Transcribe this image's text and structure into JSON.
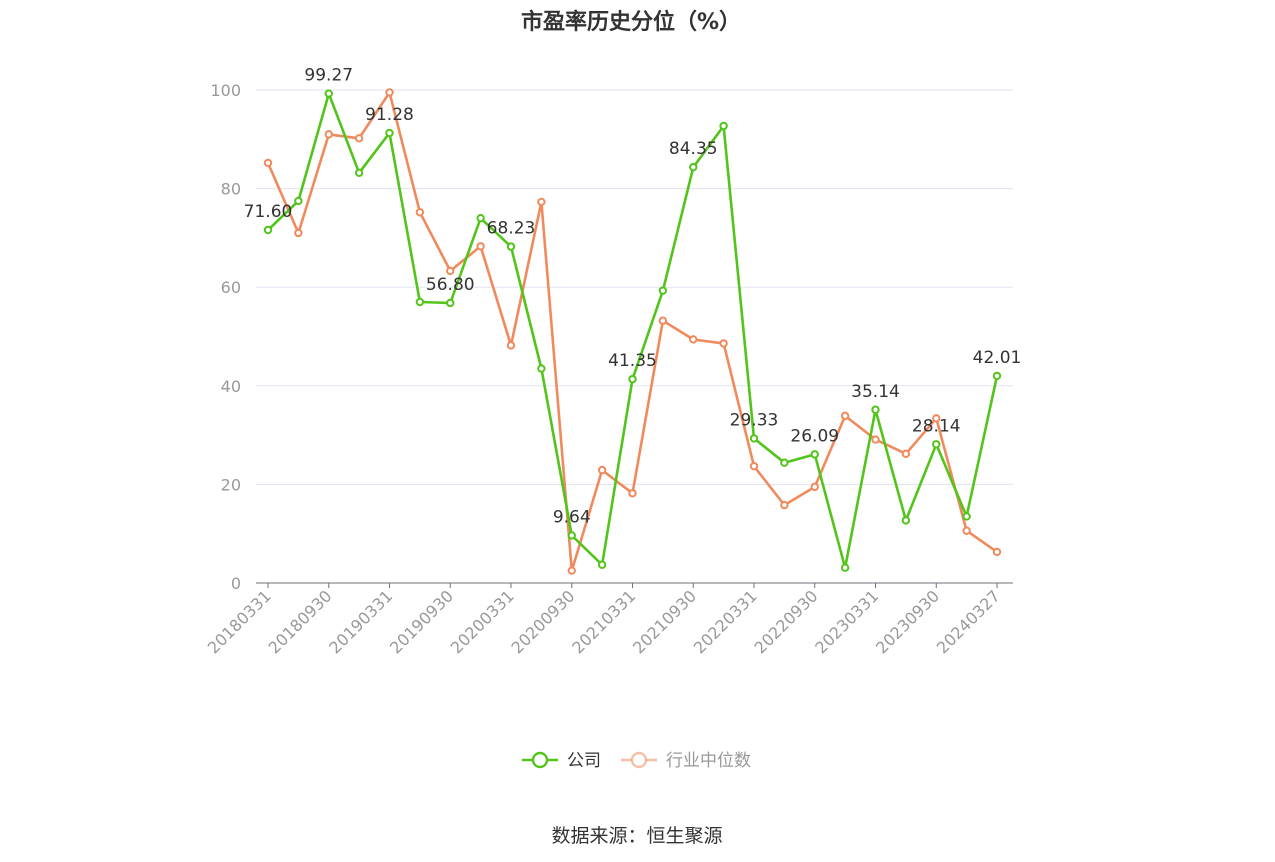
{
  "chart_data": {
    "type": "line",
    "title": "市盈率历史分位（%）",
    "source": "数据来源：恒生聚源",
    "ylim": [
      0,
      100
    ],
    "y_ticks": [
      0,
      20,
      40,
      60,
      80,
      100
    ],
    "x": [
      "20180331",
      "20180630",
      "20180930",
      "20181231",
      "20190331",
      "20190630",
      "20190930",
      "20191231",
      "20200331",
      "20200630",
      "20200930",
      "20201231",
      "20210331",
      "20210630",
      "20210930",
      "20211231",
      "20220331",
      "20220630",
      "20220930",
      "20221231",
      "20230331",
      "20230630",
      "20230930",
      "20231231",
      "20240327"
    ],
    "x_tick_labels": [
      "20180331",
      "20180930",
      "20190331",
      "20190930",
      "20200331",
      "20200930",
      "20210331",
      "20210930",
      "20220331",
      "20220930",
      "20230331",
      "20230930",
      "20240327"
    ],
    "grid": true,
    "legend_position": "bottom-center",
    "series": [
      {
        "name": "公司",
        "color": "#52c41a",
        "values": [
          71.6,
          77.5,
          99.27,
          83.2,
          91.28,
          57.0,
          56.8,
          74.0,
          68.23,
          43.5,
          9.64,
          3.7,
          41.35,
          59.3,
          84.35,
          92.7,
          29.33,
          24.4,
          26.09,
          3.1,
          35.14,
          12.7,
          28.14,
          13.5,
          42.01
        ],
        "labels": {
          "0": "71.60",
          "2": "99.27",
          "4": "91.28",
          "6": "56.80",
          "8": "68.23",
          "10": "9.64",
          "12": "41.35",
          "14": "84.35",
          "16": "29.33",
          "18": "26.09",
          "20": "35.14",
          "22": "28.14",
          "24": "42.01"
        }
      },
      {
        "name": "行业中位数",
        "color": "#f08a5d",
        "values": [
          85.2,
          71.0,
          91.0,
          90.2,
          99.5,
          75.2,
          63.3,
          68.3,
          48.2,
          77.3,
          2.5,
          22.9,
          18.2,
          53.2,
          49.4,
          48.6,
          23.7,
          15.8,
          19.5,
          33.9,
          29.1,
          26.2,
          33.4,
          10.6,
          6.3
        ]
      }
    ]
  }
}
